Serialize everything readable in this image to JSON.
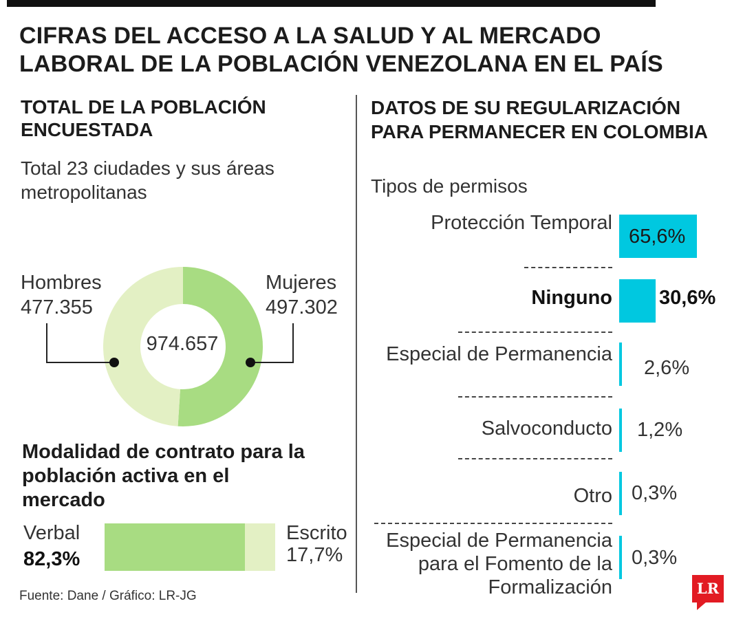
{
  "title": "CIFRAS DEL ACCESO A LA SALUD Y AL MERCADO LABORAL DE LA POBLACIÓN VENEZOLANA EN EL PAÍS",
  "left_section": {
    "title": "TOTAL DE LA POBLACIÓN ENCUESTADA",
    "subtitle": "Total 23 ciudades y sus áreas metropolitanas"
  },
  "right_section": {
    "title": "DATOS DE SU REGULARIZACIÓN PARA PERMANECER EN COLOMBIA",
    "subtitle": "Tipos de permisos"
  },
  "contract_section": {
    "title": "Modalidad de contrato para la población activa en el mercado"
  },
  "source": "Fuente: Dane / Gráfico: LR-JG",
  "logo_text": "LR",
  "colors": {
    "hombres": "#e3f0c4",
    "mujeres": "#a8dc82",
    "verbal": "#a8dc82",
    "escrito": "#e3f0c4",
    "permits": "#00c8e0"
  },
  "chart_data": [
    {
      "type": "pie",
      "categories": [
        "Hombres",
        "Mujeres"
      ],
      "value_labels": [
        "477.355",
        "497.302"
      ],
      "values": [
        477355,
        497302
      ],
      "total_label": "974.657"
    },
    {
      "type": "bar",
      "orientation": "horizontal",
      "categories": [
        "Protección Temporal",
        "Ninguno",
        "Especial de Permanencia",
        "Salvoconducto",
        "Otro",
        "Especial de Permanencia para el Fomento de la Formalización"
      ],
      "values": [
        65.6,
        30.6,
        2.6,
        1.2,
        0.3,
        0.3
      ],
      "value_labels": [
        "65,6%",
        "30,6%",
        "2,6%",
        "1,2%",
        "0,3%",
        "0,3%"
      ]
    },
    {
      "type": "bar",
      "orientation": "horizontal",
      "stacked": true,
      "categories": [
        "Verbal",
        "Escrito"
      ],
      "values": [
        82.3,
        17.7
      ],
      "value_labels": [
        "82,3%",
        "17,7%"
      ]
    }
  ]
}
